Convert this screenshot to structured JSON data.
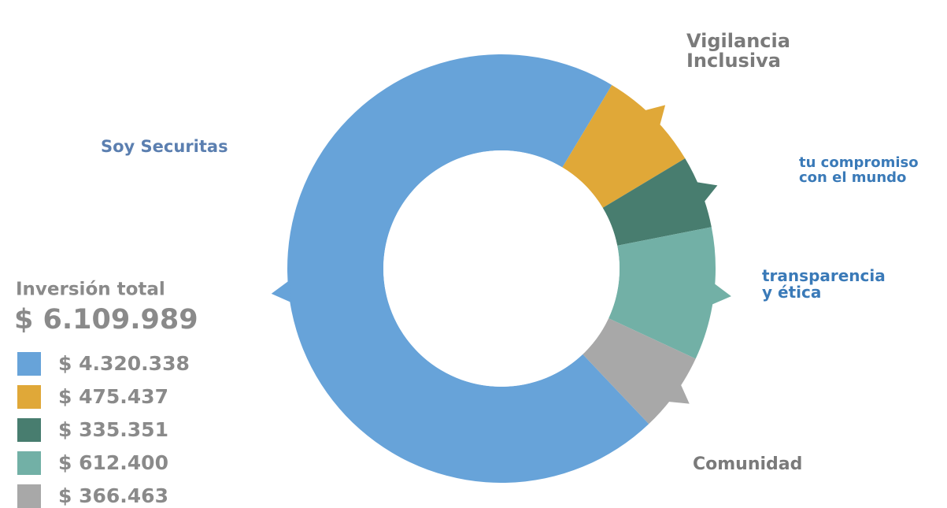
{
  "chart_data": {
    "type": "donut",
    "title": "Inversión total",
    "subtitle": "$ 6.109.989",
    "categories": [
      "Soy Securitas",
      "Vigilancia Inclusiva",
      "tu compromiso con el mundo",
      "transparencia y ética",
      "Comunidad"
    ],
    "values": [
      4320338,
      475437,
      335351,
      612400,
      366463
    ],
    "value_labels": [
      "$ 4.320.338",
      "$ 475.437",
      "$ 335.351",
      "$ 612.400",
      "$ 366.463"
    ],
    "colors": [
      "#67a3d9",
      "#e0a838",
      "#487d6f",
      "#72b0a6",
      "#a8a8a8"
    ]
  }
}
